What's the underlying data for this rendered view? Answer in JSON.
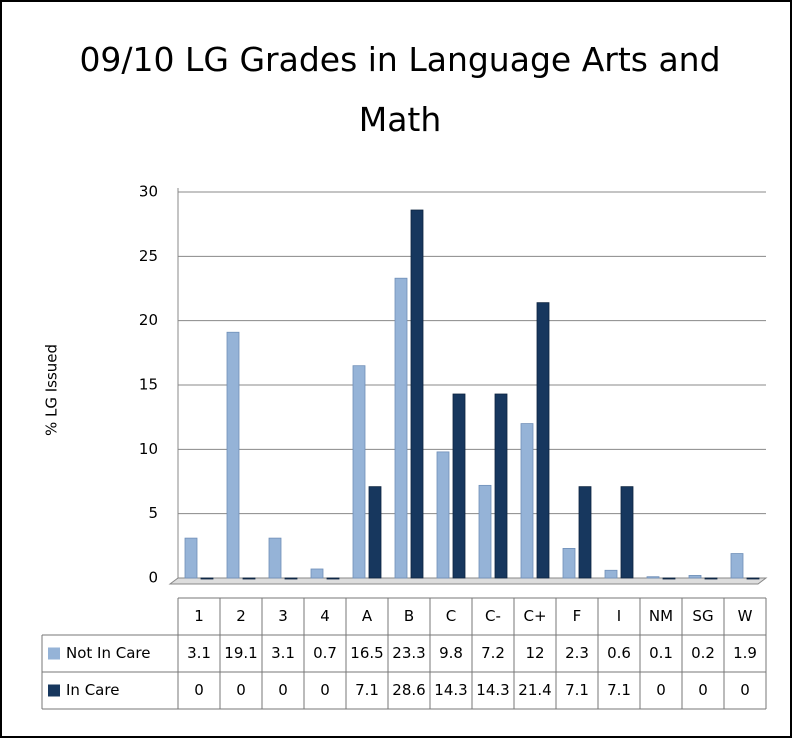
{
  "chart_data": {
    "type": "bar",
    "title": "09/10 LG Grades in Language Arts and Math",
    "y_label": "% LG Issued",
    "categories": [
      "1",
      "2",
      "3",
      "4",
      "A",
      "B",
      "C",
      "C-",
      "C+",
      "F",
      "I",
      "NM",
      "SG",
      "W"
    ],
    "series": [
      {
        "name": "Not In Care",
        "color": "#95b3d7",
        "values": [
          3.1,
          19.1,
          3.1,
          0.7,
          16.5,
          23.3,
          9.8,
          7.2,
          12,
          2.3,
          0.6,
          0.1,
          0.2,
          1.9
        ]
      },
      {
        "name": "In Care",
        "color": "#17375e",
        "values": [
          0,
          0,
          0,
          0,
          7.1,
          28.6,
          14.3,
          14.3,
          21.4,
          7.1,
          7.1,
          0,
          0,
          0
        ]
      }
    ],
    "ylim": [
      0,
      30
    ],
    "yticks": [
      0,
      5,
      10,
      15,
      20,
      25,
      30
    ],
    "grid": true,
    "data_table": true
  }
}
